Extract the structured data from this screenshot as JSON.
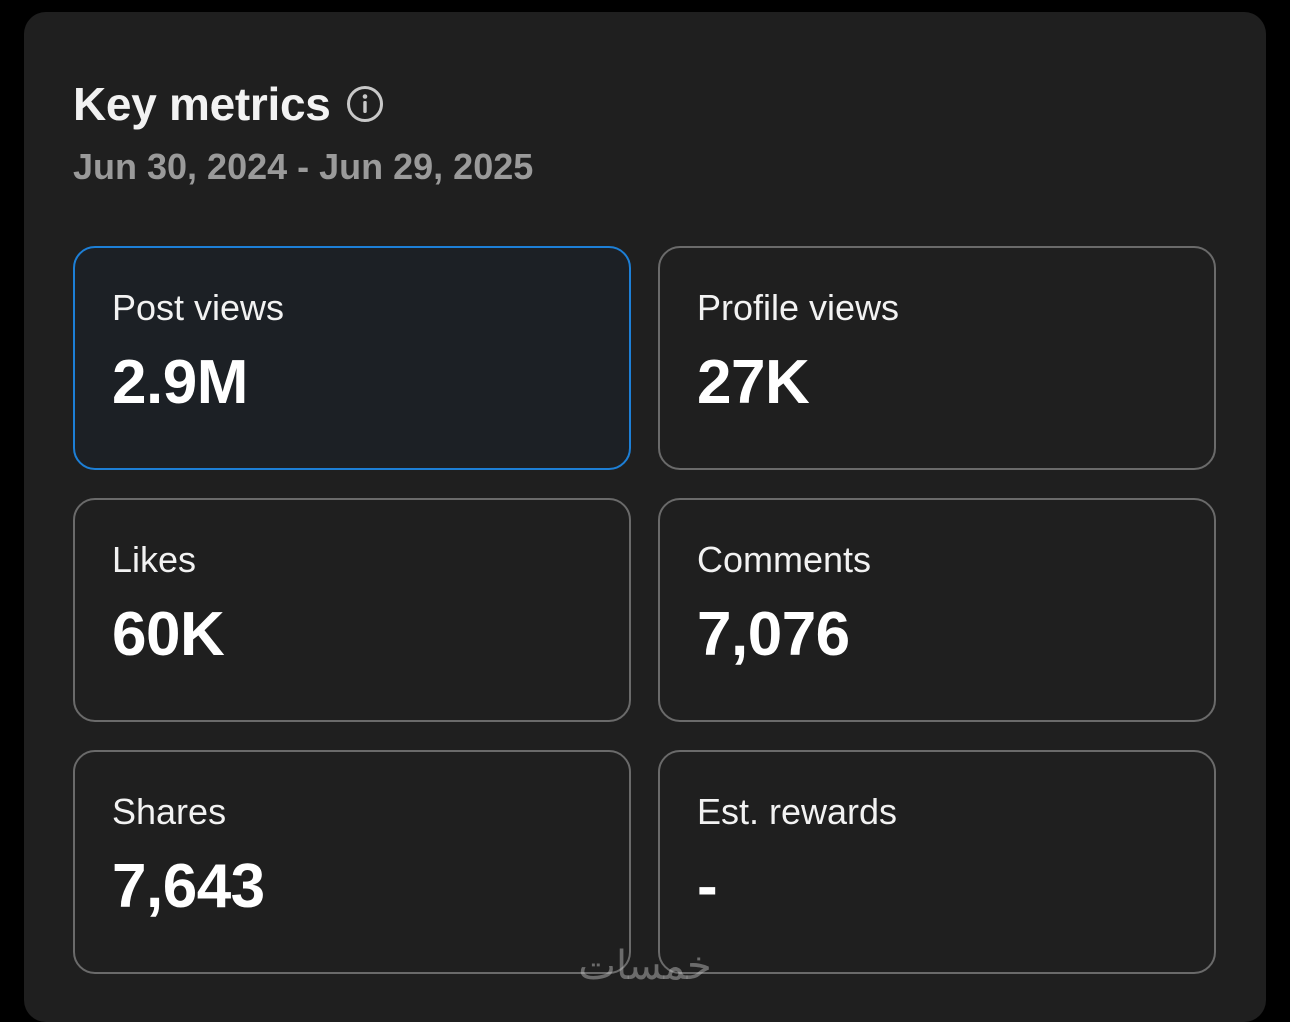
{
  "header": {
    "title": "Key metrics",
    "info_icon": "info-circle-icon",
    "date_range": "Jun 30, 2024 - Jun 29, 2025"
  },
  "metrics": [
    {
      "label": "Post views",
      "value": "2.9M",
      "selected": true
    },
    {
      "label": "Profile views",
      "value": "27K",
      "selected": false
    },
    {
      "label": "Likes",
      "value": "60K",
      "selected": false
    },
    {
      "label": "Comments",
      "value": "7,076",
      "selected": false
    },
    {
      "label": "Shares",
      "value": "7,643",
      "selected": false
    },
    {
      "label": "Est. rewards",
      "value": "-",
      "selected": false
    }
  ],
  "watermark": "خمسات",
  "colors": {
    "background": "#1f1f1f",
    "selected_border": "#1d7fd6",
    "card_border": "#6a6a6a",
    "muted_text": "#9a9a9a"
  }
}
